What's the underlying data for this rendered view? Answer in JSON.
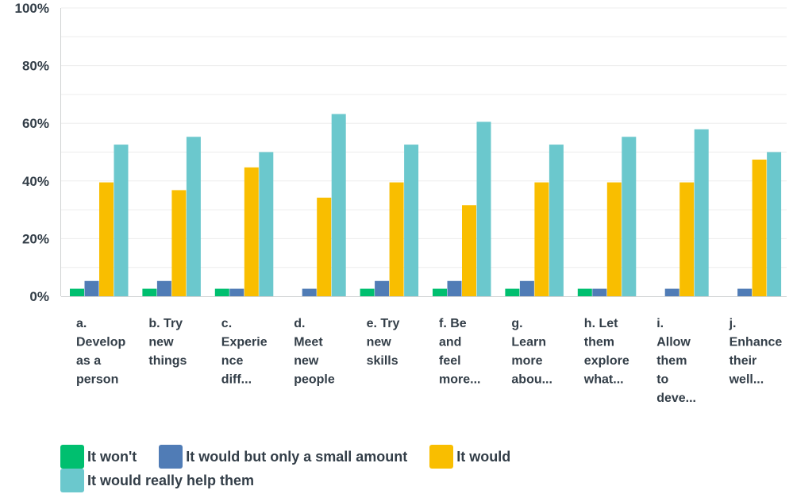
{
  "chart_data": {
    "type": "bar",
    "ylim": [
      0,
      100
    ],
    "yticks": [
      "0%",
      "20%",
      "40%",
      "60%",
      "80%",
      "100%"
    ],
    "grid": true,
    "legend_position": "bottom-left",
    "categories": [
      [
        "a.",
        "Develop",
        "as a",
        "person"
      ],
      [
        "b. Try",
        "new",
        "things"
      ],
      [
        "c.",
        "Experie",
        "nce",
        "diff..."
      ],
      [
        "d.",
        "Meet",
        "new",
        "people"
      ],
      [
        "e. Try",
        "new",
        "skills"
      ],
      [
        "f. Be",
        "and",
        "feel",
        "more..."
      ],
      [
        "g.",
        "Learn",
        "more",
        "abou..."
      ],
      [
        "h. Let",
        "them",
        "explore",
        "what..."
      ],
      [
        "i.",
        "Allow",
        "them",
        "to",
        "deve..."
      ],
      [
        "j.",
        "Enhance",
        "their",
        "well..."
      ]
    ],
    "series": [
      {
        "name": "It won't",
        "color": "#00bf6f",
        "values": [
          2.6,
          2.6,
          2.6,
          0,
          2.6,
          2.6,
          2.6,
          2.6,
          0,
          0
        ]
      },
      {
        "name": "It would but only a small amount",
        "color": "#507cb6",
        "values": [
          5.3,
          5.3,
          2.6,
          2.6,
          5.3,
          5.3,
          5.3,
          2.6,
          2.6,
          2.6
        ]
      },
      {
        "name": "It would",
        "color": "#f9be00",
        "values": [
          39.5,
          36.8,
          44.7,
          34.2,
          39.5,
          31.6,
          39.5,
          39.5,
          39.5,
          47.4
        ]
      },
      {
        "name": "It would really help them",
        "color": "#6bc8cd",
        "values": [
          52.6,
          55.3,
          50.0,
          63.2,
          52.6,
          60.5,
          52.6,
          55.3,
          57.9,
          50.0
        ]
      }
    ]
  }
}
